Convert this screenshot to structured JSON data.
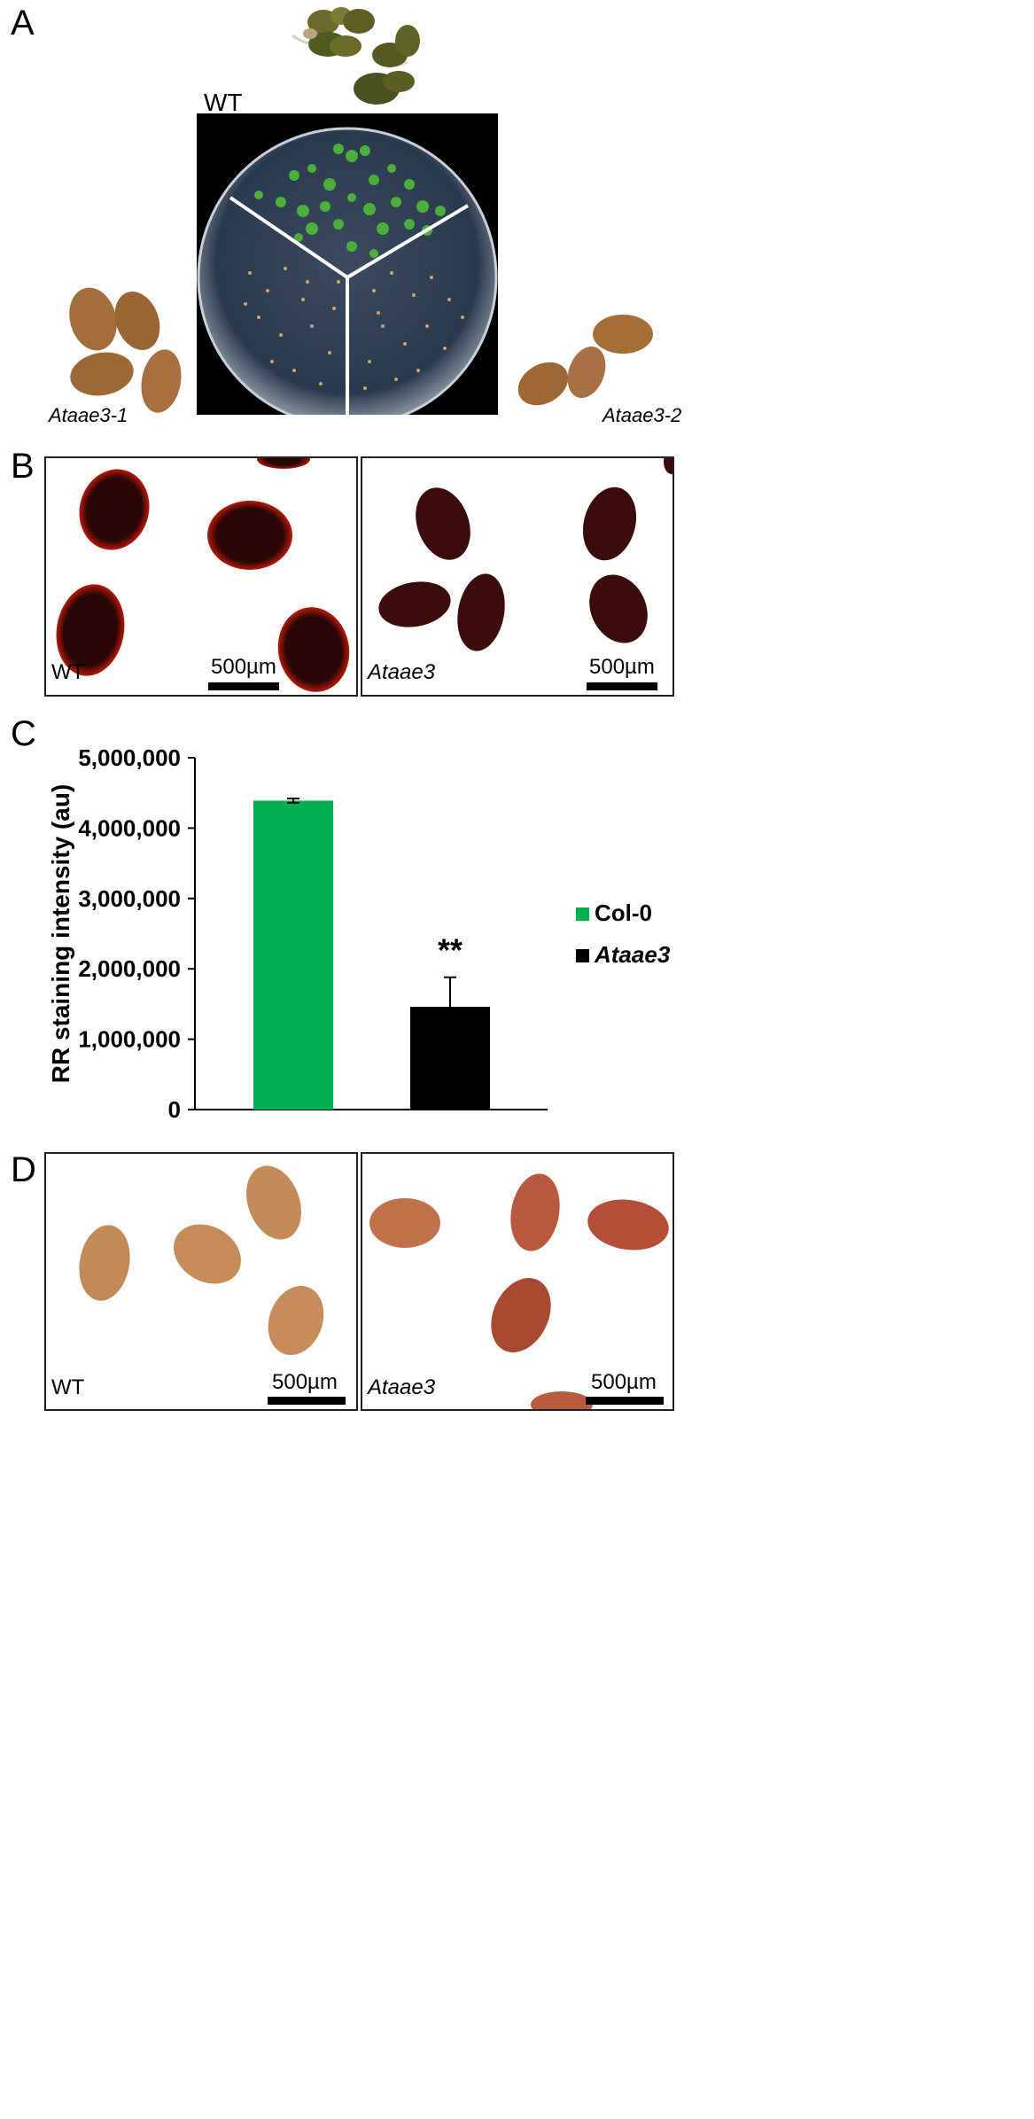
{
  "panels": {
    "A": {
      "letter": "A",
      "wt_label": "WT",
      "left_label": "Ataae3-1",
      "right_label": "Ataae3-2"
    },
    "B": {
      "letter": "B",
      "left_label": "WT",
      "right_label": "Ataae3",
      "scale_label": "500µm"
    },
    "C": {
      "letter": "C",
      "significance": "**"
    },
    "D": {
      "letter": "D",
      "left_label": "WT",
      "right_label": "Ataae3",
      "scale_label": "500µm"
    }
  },
  "chart_data": {
    "type": "bar",
    "title": "",
    "xlabel": "",
    "ylabel": "RR staining intensity (au)",
    "ylim": [
      0,
      5000000
    ],
    "yticks": [
      0,
      1000000,
      2000000,
      3000000,
      4000000,
      5000000
    ],
    "ytick_labels": [
      "0",
      "1,000,000",
      "2,000,000",
      "3,000,000",
      "4,000,000",
      "5,000,000"
    ],
    "categories": [
      "Col-0",
      "Ataae3"
    ],
    "values": [
      4390000,
      1460000
    ],
    "errors": [
      30000,
      420000
    ],
    "colors": [
      "#00b050",
      "#000000"
    ],
    "legend": [
      "Col-0",
      "Ataae3"
    ],
    "legend_position": "right"
  }
}
